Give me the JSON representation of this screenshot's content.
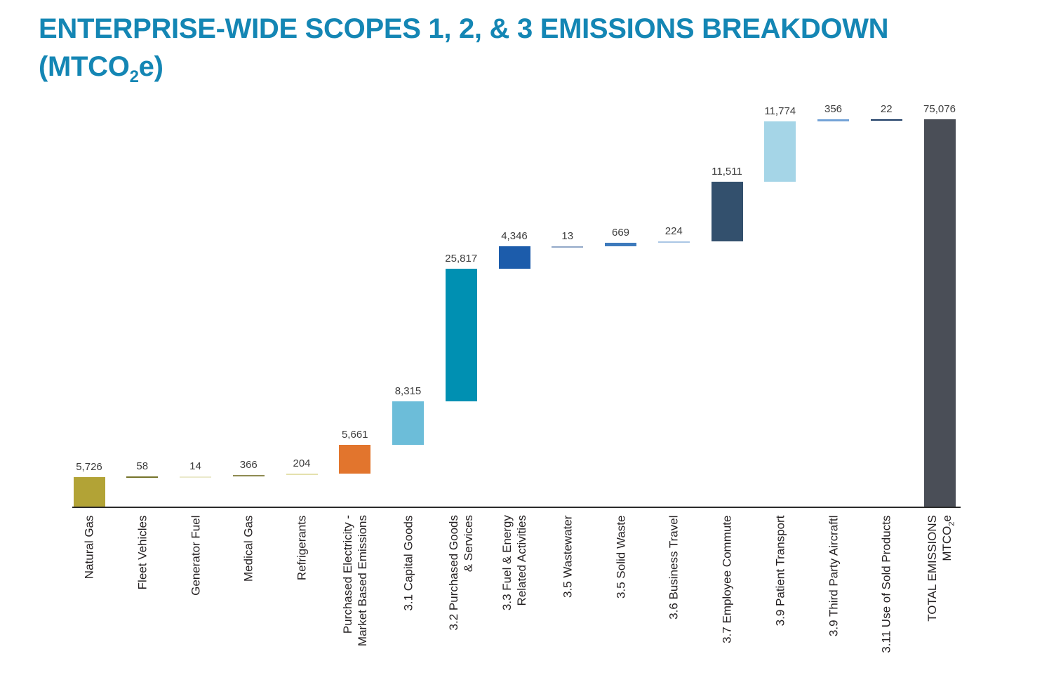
{
  "title": {
    "line1": "ENTERPRISE-WIDE SCOPES 1, 2, & 3 EMISSIONS BREAKDOWN",
    "line2": "(MTCO2e)",
    "color": "#1486b4"
  },
  "chart_data": {
    "type": "bar",
    "subtype": "waterfall",
    "title": "ENTERPRISE-WIDE SCOPES 1, 2, & 3 EMISSIONS BREAKDOWN (MTCO2e)",
    "unit": "MTCO2e",
    "ylim": [
      0,
      75076
    ],
    "grid": false,
    "legend": false,
    "axis_color": "#2b2b2b",
    "categories": [
      "Natural Gas",
      "Fleet Vehicles",
      "Generator Fuel",
      "Medical Gas",
      "Refrigerants",
      "Purchased Electricity - Market Based Emissions",
      "3.1 Capital Goods",
      "3.2 Purchased Goods & Services",
      "3.3 Fuel & Energy Related Activities",
      "3.5 Wastewater",
      "3.5 Solid Waste",
      "3.6 Business Travel",
      "3.7 Employee Commute",
      "3.9 Patient Transport",
      "3.9 Third Party Aircraftl",
      "3.11 Use of Sold Products",
      "TOTAL EMISSIONS MTCO2e"
    ],
    "items": [
      {
        "id": "natural-gas",
        "label_lines": [
          "Natural Gas"
        ],
        "value": 5726,
        "value_label": "5,726",
        "color": "#b2a336",
        "kind": "delta"
      },
      {
        "id": "fleet-vehicles",
        "label_lines": [
          "Fleet Vehicles"
        ],
        "value": 58,
        "value_label": "58",
        "color": "#75742a",
        "kind": "delta"
      },
      {
        "id": "generator-fuel",
        "label_lines": [
          "Generator Fuel"
        ],
        "value": 14,
        "value_label": "14",
        "color": "#ebe9cc",
        "kind": "delta"
      },
      {
        "id": "medical-gas",
        "label_lines": [
          "Medical Gas"
        ],
        "value": 366,
        "value_label": "366",
        "color": "#8f8b51",
        "kind": "delta"
      },
      {
        "id": "refrigerants",
        "label_lines": [
          "Refrigerants"
        ],
        "value": 204,
        "value_label": "204",
        "color": "#e4e1ad",
        "kind": "delta"
      },
      {
        "id": "purchased-electricity",
        "label_lines": [
          "Purchased Electricity -",
          "Market Based Emissions"
        ],
        "value": 5661,
        "value_label": "5,661",
        "color": "#e2752d",
        "kind": "delta"
      },
      {
        "id": "capital-goods",
        "label_lines": [
          "3.1 Capital Goods"
        ],
        "value": 8315,
        "value_label": "8,315",
        "color": "#6cbdd9",
        "kind": "delta"
      },
      {
        "id": "purchased-goods-services",
        "label_lines": [
          "3.2 Purchased Goods",
          "& Services"
        ],
        "value": 25817,
        "value_label": "25,817",
        "color": "#0090b2",
        "kind": "delta"
      },
      {
        "id": "fuel-energy-related",
        "label_lines": [
          "3.3 Fuel & Energy",
          "Related Activities"
        ],
        "value": 4346,
        "value_label": "4,346",
        "color": "#1c5cab",
        "kind": "delta"
      },
      {
        "id": "wastewater",
        "label_lines": [
          "3.5 Wastewater"
        ],
        "value": 13,
        "value_label": "13",
        "color": "#92a8c8",
        "kind": "delta"
      },
      {
        "id": "solid-waste",
        "label_lines": [
          "3.5 Solid Waste"
        ],
        "value": 669,
        "value_label": "669",
        "color": "#3d7abc",
        "kind": "delta"
      },
      {
        "id": "business-travel",
        "label_lines": [
          "3.6 Business Travel"
        ],
        "value": 224,
        "value_label": "224",
        "color": "#abc7e5",
        "kind": "delta"
      },
      {
        "id": "employee-commute",
        "label_lines": [
          "3.7 Employee Commute"
        ],
        "value": 11511,
        "value_label": "11,511",
        "color": "#33506d",
        "kind": "delta"
      },
      {
        "id": "patient-transport",
        "label_lines": [
          "3.9 Patient Transport"
        ],
        "value": 11774,
        "value_label": "11,774",
        "color": "#a5d5e7",
        "kind": "delta"
      },
      {
        "id": "third-party-aircraft",
        "label_lines": [
          "3.9 Third Party Aircraftl"
        ],
        "value": 356,
        "value_label": "356",
        "color": "#74a3d7",
        "kind": "delta"
      },
      {
        "id": "use-of-sold-products",
        "label_lines": [
          "3.11 Use of Sold Products"
        ],
        "value": 22,
        "value_label": "22",
        "color": "#1a3a63",
        "kind": "delta"
      },
      {
        "id": "total-emissions",
        "label_lines": [
          "TOTAL EMISSIONS",
          "MTCO2e"
        ],
        "value": 75076,
        "value_label": "75,076",
        "color": "#4a4e57",
        "kind": "total"
      }
    ]
  }
}
